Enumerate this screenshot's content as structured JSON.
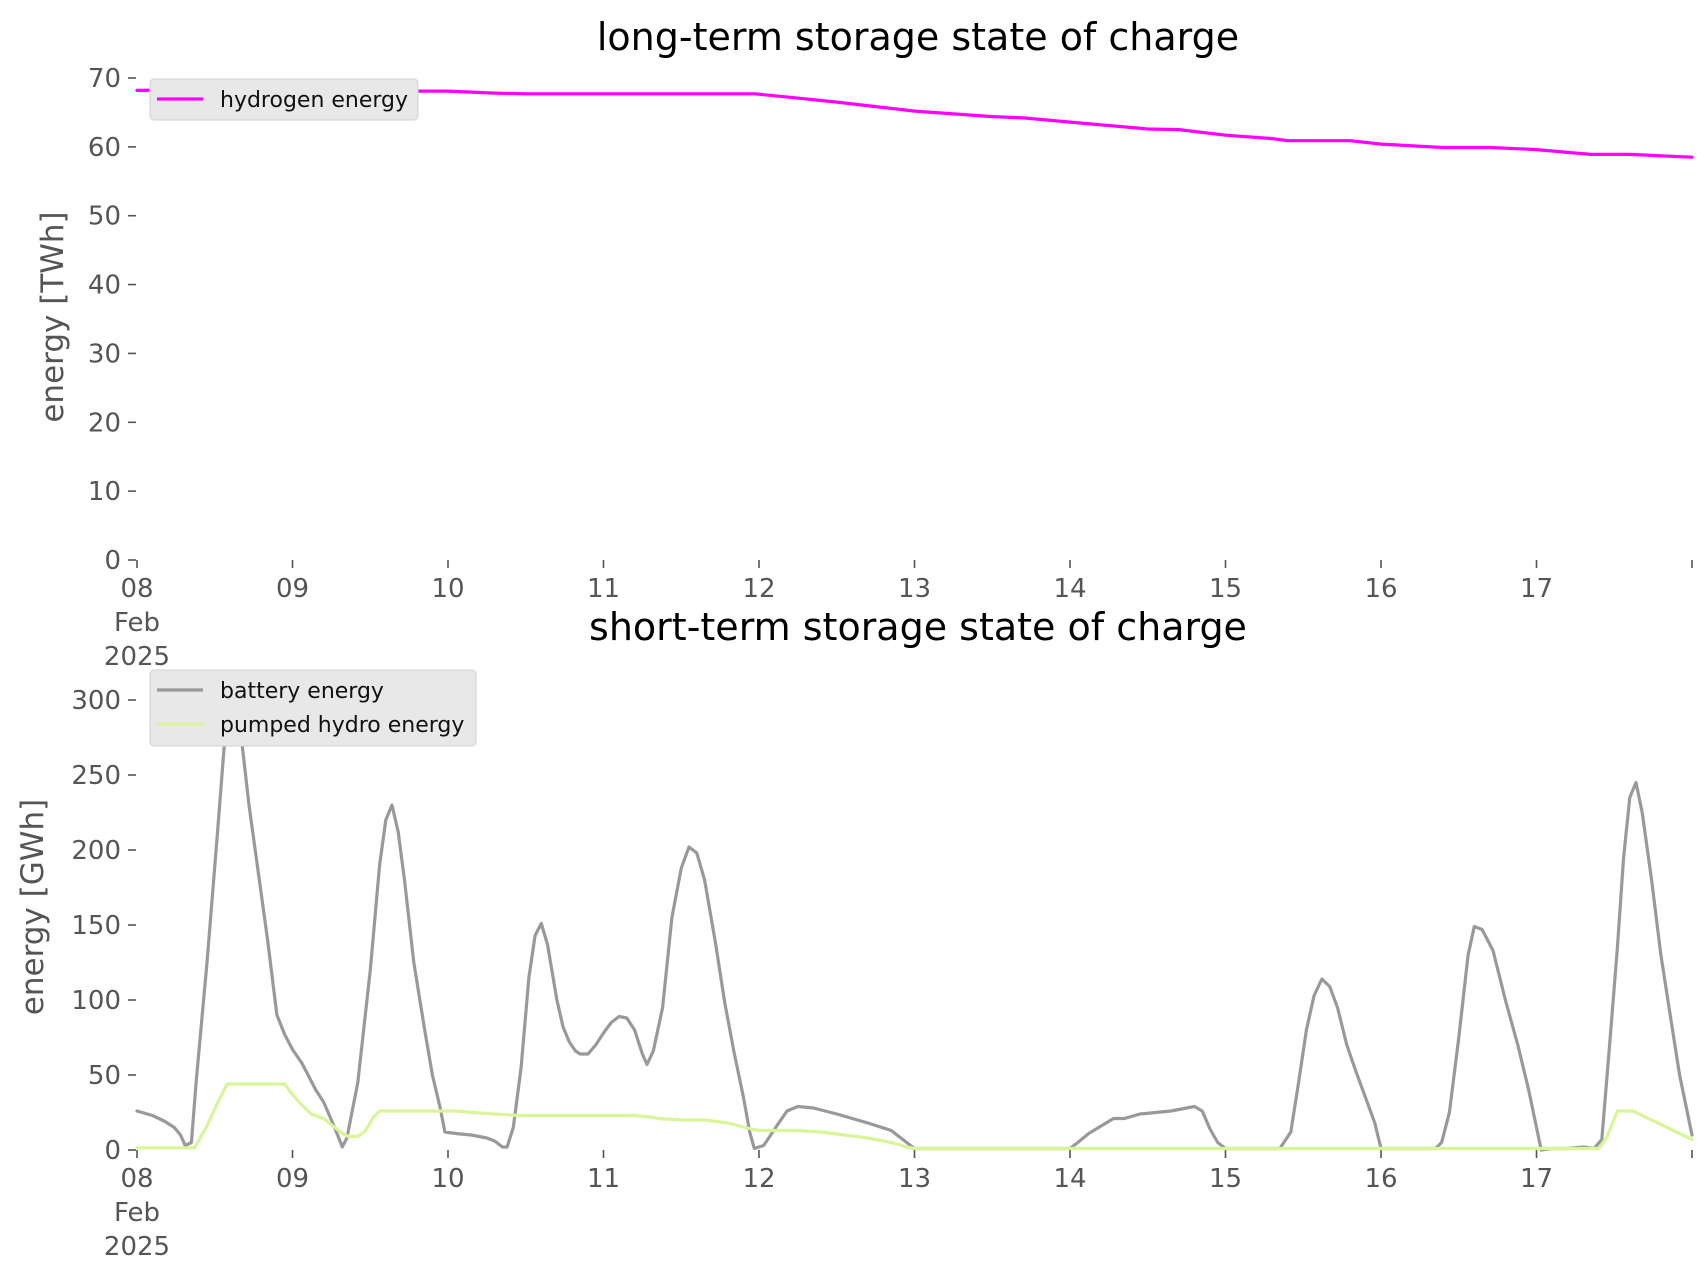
{
  "chart_data": [
    {
      "type": "line",
      "title": "long-term storage state of charge",
      "ylabel": "energy [TWh]",
      "xlabel": "",
      "ylim": [
        0,
        70
      ],
      "xlim": [
        0,
        10
      ],
      "yticks": [
        0,
        10,
        20,
        30,
        40,
        50,
        60,
        70
      ],
      "xticks": [
        {
          "x": 0,
          "label": [
            "08",
            "Feb",
            "2025"
          ]
        },
        {
          "x": 1,
          "label": [
            "09"
          ]
        },
        {
          "x": 2,
          "label": [
            "10"
          ]
        },
        {
          "x": 3,
          "label": [
            "11"
          ]
        },
        {
          "x": 4,
          "label": [
            "12"
          ]
        },
        {
          "x": 5,
          "label": [
            "13"
          ]
        },
        {
          "x": 6,
          "label": [
            "14"
          ]
        },
        {
          "x": 7,
          "label": [
            "15"
          ]
        },
        {
          "x": 8,
          "label": [
            "16"
          ]
        },
        {
          "x": 9,
          "label": [
            "17"
          ]
        }
      ],
      "legend": "top-left",
      "grid": false,
      "series": [
        {
          "name": "hydrogen energy",
          "color": "#ff00ff",
          "points": [
            [
              0,
              68.2
            ],
            [
              0.5,
              68.3
            ],
            [
              1,
              68.2
            ],
            [
              1.5,
              68.1
            ],
            [
              2,
              68.1
            ],
            [
              2.3,
              67.8
            ],
            [
              2.5,
              67.7
            ],
            [
              3,
              67.7
            ],
            [
              3.5,
              67.7
            ],
            [
              3.97,
              67.7
            ],
            [
              4.2,
              67.2
            ],
            [
              4.5,
              66.5
            ],
            [
              5,
              65.2
            ],
            [
              5.5,
              64.4
            ],
            [
              5.7,
              64.2
            ],
            [
              6,
              63.6
            ],
            [
              6.5,
              62.6
            ],
            [
              6.7,
              62.5
            ],
            [
              7,
              61.7
            ],
            [
              7.3,
              61.2
            ],
            [
              7.4,
              60.9
            ],
            [
              7.6,
              60.9
            ],
            [
              7.8,
              60.9
            ],
            [
              8,
              60.4
            ],
            [
              8.4,
              59.9
            ],
            [
              8.7,
              59.9
            ],
            [
              9,
              59.6
            ],
            [
              9.2,
              59.2
            ],
            [
              9.35,
              58.9
            ],
            [
              9.6,
              58.9
            ],
            [
              10,
              58.5
            ]
          ]
        }
      ]
    },
    {
      "type": "line",
      "title": "short-term storage state of charge",
      "ylabel": "energy [GWh]",
      "xlabel": "",
      "ylim": [
        0,
        320
      ],
      "xlim": [
        0,
        10
      ],
      "yticks": [
        0,
        50,
        100,
        150,
        200,
        250,
        300
      ],
      "xticks": [
        {
          "x": 0,
          "label": [
            "08",
            "Feb",
            "2025"
          ]
        },
        {
          "x": 1,
          "label": [
            "09"
          ]
        },
        {
          "x": 2,
          "label": [
            "10"
          ]
        },
        {
          "x": 3,
          "label": [
            "11"
          ]
        },
        {
          "x": 4,
          "label": [
            "12"
          ]
        },
        {
          "x": 5,
          "label": [
            "13"
          ]
        },
        {
          "x": 6,
          "label": [
            "14"
          ]
        },
        {
          "x": 7,
          "label": [
            "15"
          ]
        },
        {
          "x": 8,
          "label": [
            "16"
          ]
        },
        {
          "x": 9,
          "label": [
            "17"
          ]
        }
      ],
      "legend": "top-left",
      "grid": false,
      "series": [
        {
          "name": "battery energy",
          "color": "#999999",
          "points": [
            [
              0,
              26
            ],
            [
              0.1,
              23
            ],
            [
              0.18,
              19
            ],
            [
              0.24,
              15
            ],
            [
              0.28,
              10
            ],
            [
              0.31,
              3
            ],
            [
              0.35,
              5
            ],
            [
              0.38,
              45
            ],
            [
              0.45,
              125
            ],
            [
              0.52,
              215
            ],
            [
              0.58,
              295
            ],
            [
              0.62,
              308
            ],
            [
              0.66,
              285
            ],
            [
              0.72,
              230
            ],
            [
              0.78,
              185
            ],
            [
              0.84,
              140
            ],
            [
              0.9,
              90
            ],
            [
              0.95,
              77
            ],
            [
              1,
              67
            ],
            [
              1.06,
              58
            ],
            [
              1.1,
              50
            ],
            [
              1.15,
              40
            ],
            [
              1.2,
              32
            ],
            [
              1.25,
              20
            ],
            [
              1.29,
              10
            ],
            [
              1.32,
              2
            ],
            [
              1.35,
              8
            ],
            [
              1.42,
              45
            ],
            [
              1.5,
              120
            ],
            [
              1.56,
              190
            ],
            [
              1.6,
              220
            ],
            [
              1.64,
              230
            ],
            [
              1.68,
              212
            ],
            [
              1.72,
              180
            ],
            [
              1.78,
              125
            ],
            [
              1.85,
              80
            ],
            [
              1.9,
              50
            ],
            [
              1.95,
              28
            ],
            [
              1.98,
              12
            ],
            [
              2.05,
              11
            ],
            [
              2.15,
              10
            ],
            [
              2.25,
              8
            ],
            [
              2.3,
              6
            ],
            [
              2.35,
              2
            ],
            [
              2.38,
              2
            ],
            [
              2.42,
              15
            ],
            [
              2.47,
              55
            ],
            [
              2.52,
              115
            ],
            [
              2.56,
              143
            ],
            [
              2.6,
              151
            ],
            [
              2.64,
              137
            ],
            [
              2.7,
              100
            ],
            [
              2.74,
              82
            ],
            [
              2.78,
              72
            ],
            [
              2.82,
              66
            ],
            [
              2.85,
              64
            ],
            [
              2.9,
              64
            ],
            [
              2.95,
              70
            ],
            [
              3,
              78
            ],
            [
              3.05,
              85
            ],
            [
              3.1,
              89
            ],
            [
              3.15,
              88
            ],
            [
              3.2,
              80
            ],
            [
              3.25,
              64
            ],
            [
              3.28,
              57
            ],
            [
              3.32,
              66
            ],
            [
              3.38,
              95
            ],
            [
              3.44,
              155
            ],
            [
              3.5,
              188
            ],
            [
              3.55,
              202
            ],
            [
              3.6,
              198
            ],
            [
              3.65,
              180
            ],
            [
              3.72,
              138
            ],
            [
              3.78,
              98
            ],
            [
              3.84,
              65
            ],
            [
              3.9,
              35
            ],
            [
              3.94,
              12
            ],
            [
              3.97,
              1
            ],
            [
              4.03,
              3
            ],
            [
              4.12,
              17
            ],
            [
              4.18,
              26
            ],
            [
              4.25,
              29
            ],
            [
              4.35,
              28
            ],
            [
              4.5,
              24
            ],
            [
              4.7,
              18
            ],
            [
              4.85,
              13
            ],
            [
              4.95,
              5
            ],
            [
              5,
              1
            ],
            [
              5.2,
              1
            ],
            [
              5.5,
              1
            ],
            [
              5.8,
              1
            ],
            [
              6,
              1
            ],
            [
              6.05,
              5
            ],
            [
              6.12,
              11
            ],
            [
              6.2,
              16
            ],
            [
              6.28,
              21
            ],
            [
              6.35,
              21
            ],
            [
              6.45,
              24
            ],
            [
              6.55,
              25
            ],
            [
              6.65,
              26
            ],
            [
              6.75,
              28
            ],
            [
              6.8,
              29
            ],
            [
              6.85,
              26
            ],
            [
              6.9,
              14
            ],
            [
              6.95,
              5
            ],
            [
              7,
              1
            ],
            [
              7.2,
              1
            ],
            [
              7.35,
              1
            ],
            [
              7.42,
              12
            ],
            [
              7.47,
              45
            ],
            [
              7.52,
              80
            ],
            [
              7.57,
              103
            ],
            [
              7.62,
              114
            ],
            [
              7.67,
              109
            ],
            [
              7.72,
              95
            ],
            [
              7.78,
              70
            ],
            [
              7.84,
              52
            ],
            [
              7.9,
              35
            ],
            [
              7.96,
              18
            ],
            [
              8,
              1
            ],
            [
              8.2,
              1
            ],
            [
              8.35,
              1
            ],
            [
              8.39,
              5
            ],
            [
              8.44,
              25
            ],
            [
              8.5,
              75
            ],
            [
              8.56,
              130
            ],
            [
              8.6,
              149
            ],
            [
              8.65,
              147
            ],
            [
              8.72,
              133
            ],
            [
              8.8,
              100
            ],
            [
              8.88,
              70
            ],
            [
              8.95,
              40
            ],
            [
              9,
              15
            ],
            [
              9.03,
              0
            ],
            [
              9.1,
              1
            ],
            [
              9.2,
              1
            ],
            [
              9.3,
              2
            ],
            [
              9.37,
              1
            ],
            [
              9.42,
              7
            ],
            [
              9.47,
              70
            ],
            [
              9.52,
              135
            ],
            [
              9.56,
              195
            ],
            [
              9.6,
              235
            ],
            [
              9.64,
              245
            ],
            [
              9.68,
              225
            ],
            [
              9.74,
              180
            ],
            [
              9.8,
              130
            ],
            [
              9.86,
              90
            ],
            [
              9.92,
              50
            ],
            [
              10,
              10
            ]
          ]
        },
        {
          "name": "pumped hydro energy",
          "color": "#d9f59a",
          "points": [
            [
              0,
              1.5
            ],
            [
              0.15,
              1.5
            ],
            [
              0.37,
              1.5
            ],
            [
              0.45,
              16
            ],
            [
              0.52,
              32
            ],
            [
              0.58,
              44
            ],
            [
              0.65,
              44
            ],
            [
              0.8,
              44
            ],
            [
              0.95,
              44
            ],
            [
              1,
              37
            ],
            [
              1.06,
              30
            ],
            [
              1.12,
              24
            ],
            [
              1.2,
              21
            ],
            [
              1.26,
              16
            ],
            [
              1.32,
              11
            ],
            [
              1.36,
              9
            ],
            [
              1.42,
              9
            ],
            [
              1.47,
              13
            ],
            [
              1.52,
              22
            ],
            [
              1.56,
              26
            ],
            [
              1.65,
              26
            ],
            [
              1.8,
              26
            ],
            [
              1.95,
              26
            ],
            [
              2.05,
              26
            ],
            [
              2.15,
              25
            ],
            [
              2.3,
              24
            ],
            [
              2.45,
              23
            ],
            [
              2.6,
              23
            ],
            [
              3,
              23
            ],
            [
              3.2,
              23
            ],
            [
              3.3,
              22
            ],
            [
              3.35,
              21
            ],
            [
              3.5,
              20
            ],
            [
              3.65,
              20
            ],
            [
              3.8,
              18
            ],
            [
              3.95,
              14
            ],
            [
              4,
              13
            ],
            [
              4.25,
              13
            ],
            [
              4.4,
              12
            ],
            [
              4.55,
              10
            ],
            [
              4.7,
              8
            ],
            [
              4.85,
              5
            ],
            [
              4.95,
              2
            ],
            [
              5,
              1
            ],
            [
              6,
              1
            ],
            [
              7,
              1
            ],
            [
              8,
              1
            ],
            [
              9,
              1
            ],
            [
              9.4,
              1
            ],
            [
              9.45,
              8
            ],
            [
              9.52,
              26
            ],
            [
              9.62,
              26
            ],
            [
              9.7,
              22
            ],
            [
              9.8,
              17
            ],
            [
              9.9,
              12
            ],
            [
              10,
              7
            ]
          ]
        }
      ]
    }
  ]
}
